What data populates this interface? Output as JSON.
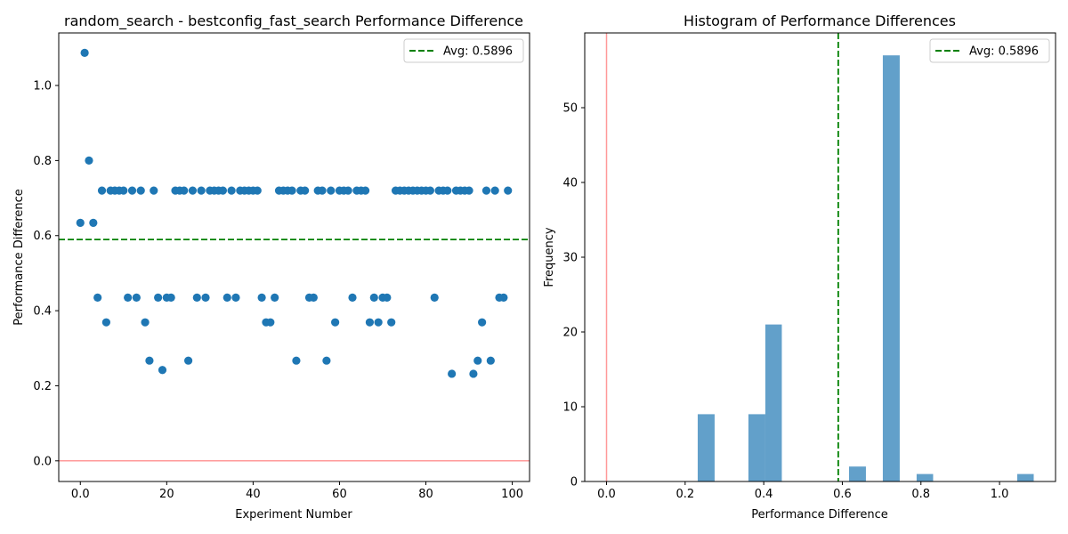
{
  "chart_data": [
    {
      "type": "scatter",
      "title": "random_search - bestconfig_fast_search Performance Difference",
      "xlabel": "Experiment Number",
      "ylabel": "Performance Difference",
      "xlim": [
        -5,
        104
      ],
      "ylim": [
        -0.055,
        1.14
      ],
      "xticks": [
        0,
        20,
        40,
        60,
        80,
        100
      ],
      "yticks": [
        0.0,
        0.2,
        0.4,
        0.6,
        0.8,
        1.0
      ],
      "point_color": "#1f77b4",
      "average": {
        "value": 0.5896,
        "label": "Avg: 0.5896",
        "color": "#008000",
        "style": "dashed"
      },
      "zero_line": {
        "value": 0,
        "color": "#ff9999"
      },
      "legend": "top-right",
      "grid": false,
      "x": [
        0,
        1,
        2,
        3,
        4,
        5,
        6,
        7,
        8,
        9,
        10,
        11,
        12,
        13,
        14,
        15,
        16,
        17,
        18,
        19,
        20,
        21,
        22,
        23,
        24,
        25,
        26,
        27,
        28,
        29,
        30,
        31,
        32,
        33,
        34,
        35,
        36,
        37,
        38,
        39,
        40,
        41,
        42,
        43,
        44,
        45,
        46,
        47,
        48,
        49,
        50,
        51,
        52,
        53,
        54,
        55,
        56,
        57,
        58,
        59,
        60,
        61,
        62,
        63,
        64,
        65,
        66,
        67,
        68,
        69,
        70,
        71,
        72,
        73,
        74,
        75,
        76,
        77,
        78,
        79,
        80,
        81,
        82,
        83,
        84,
        85,
        86,
        87,
        88,
        89,
        90,
        91,
        92,
        93,
        94,
        95,
        96,
        97,
        98,
        99
      ],
      "y": [
        0.634,
        1.087,
        0.8,
        0.634,
        0.435,
        0.72,
        0.369,
        0.72,
        0.72,
        0.72,
        0.72,
        0.435,
        0.72,
        0.435,
        0.72,
        0.369,
        0.267,
        0.72,
        0.435,
        0.242,
        0.435,
        0.435,
        0.72,
        0.72,
        0.72,
        0.267,
        0.72,
        0.435,
        0.72,
        0.435,
        0.72,
        0.72,
        0.72,
        0.72,
        0.435,
        0.72,
        0.435,
        0.72,
        0.72,
        0.72,
        0.72,
        0.72,
        0.435,
        0.369,
        0.369,
        0.435,
        0.72,
        0.72,
        0.72,
        0.72,
        0.267,
        0.72,
        0.72,
        0.435,
        0.435,
        0.72,
        0.72,
        0.267,
        0.72,
        0.369,
        0.72,
        0.72,
        0.72,
        0.435,
        0.72,
        0.72,
        0.72,
        0.369,
        0.435,
        0.369,
        0.435,
        0.435,
        0.369,
        0.72,
        0.72,
        0.72,
        0.72,
        0.72,
        0.72,
        0.72,
        0.72,
        0.72,
        0.435,
        0.72,
        0.72,
        0.72,
        0.232,
        0.72,
        0.72,
        0.72,
        0.72,
        0.232,
        0.267,
        0.369,
        0.72,
        0.267,
        0.72,
        0.435,
        0.435,
        0.72
      ]
    },
    {
      "type": "bar",
      "title": "Histogram of Performance Differences",
      "xlabel": "Performance Difference",
      "ylabel": "Frequency",
      "xlim": [
        -0.0555,
        1.1425
      ],
      "ylim": [
        0,
        60
      ],
      "xticks": [
        0.0,
        0.2,
        0.4,
        0.6,
        0.8,
        1.0
      ],
      "yticks": [
        0,
        10,
        20,
        30,
        40,
        50
      ],
      "bar_color": "#1f77b4",
      "bar_opacity": 0.7,
      "average": {
        "value": 0.5896,
        "label": "Avg: 0.5896",
        "color": "#008000",
        "style": "dashed"
      },
      "zero_line": {
        "value": 0,
        "color": "#ff9999"
      },
      "legend": "top-right",
      "grid": false,
      "bins": [
        {
          "x0": 0.232,
          "x1": 0.275,
          "count": 9
        },
        {
          "x0": 0.361,
          "x1": 0.404,
          "count": 9
        },
        {
          "x0": 0.404,
          "x1": 0.446,
          "count": 21
        },
        {
          "x0": 0.617,
          "x1": 0.66,
          "count": 2
        },
        {
          "x0": 0.703,
          "x1": 0.746,
          "count": 57
        },
        {
          "x0": 0.789,
          "x1": 0.831,
          "count": 1
        },
        {
          "x0": 1.045,
          "x1": 1.087,
          "count": 1
        }
      ]
    }
  ]
}
